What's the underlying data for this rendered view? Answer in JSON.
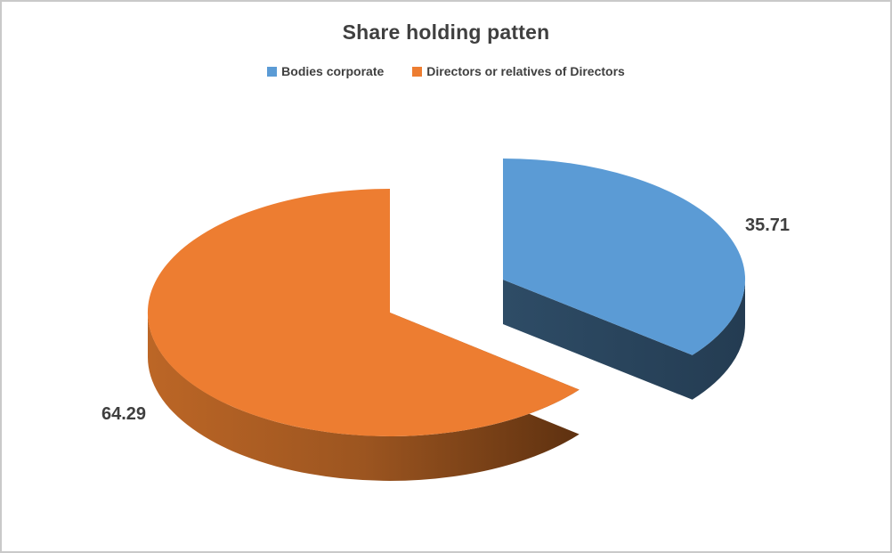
{
  "window": {
    "background": "#ffffff",
    "border_color": "#c9c9c9",
    "text_color": "#3f3f3f"
  },
  "chart_data": {
    "type": "pie",
    "style": "3d-exploded",
    "title": "Share holding patten",
    "categories": [
      "Bodies corporate",
      "Directors or relatives of Directors"
    ],
    "values": [
      35.71,
      64.29
    ],
    "data_labels": [
      "35.71",
      "64.29"
    ],
    "colors": [
      "#5B9BD5",
      "#ED7D31"
    ],
    "side_colors": {
      "blue_side_light": "#2E4C66",
      "blue_side_dark": "#243C52",
      "orange_side_left": "#BC6626",
      "orange_side_mid": "#9C5520",
      "orange_side_right": "#5E3110"
    },
    "legend_position": "top",
    "grid": false
  }
}
